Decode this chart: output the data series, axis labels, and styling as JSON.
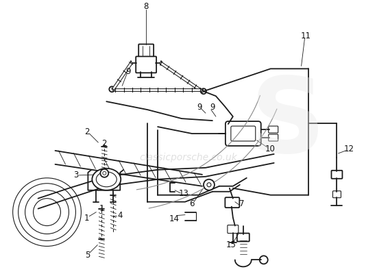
{
  "background_color": "#ffffff",
  "watermark_text": "classicporsche.co.uk",
  "watermark_color": "#cccccc",
  "line_color": "#1a1a1a",
  "label_color": "#111111",
  "figsize": [
    5.5,
    4.0
  ],
  "dpi": 100,
  "xlim": [
    0,
    550
  ],
  "ylim": [
    0,
    400
  ]
}
